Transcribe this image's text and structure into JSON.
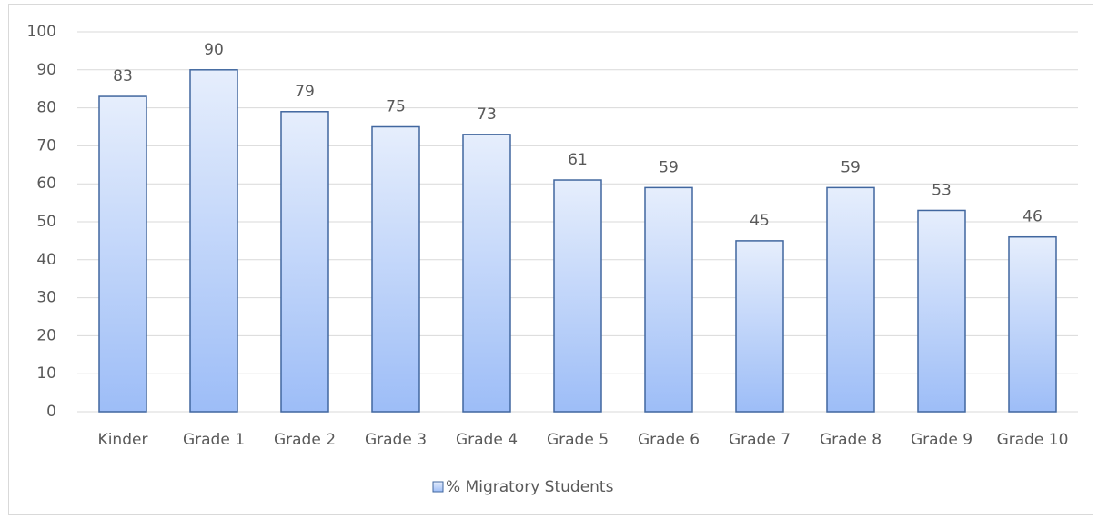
{
  "chart_data": {
    "type": "bar",
    "categories": [
      "Kinder",
      "Grade 1",
      "Grade 2",
      "Grade 3",
      "Grade 4",
      "Grade 5",
      "Grade 6",
      "Grade 7",
      "Grade 8",
      "Grade 9",
      "Grade 10"
    ],
    "series": [
      {
        "name": "% Migratory Students",
        "color": "#9dbdf7",
        "edgecolor": "#41679f",
        "values": [
          83,
          90,
          79,
          75,
          73,
          61,
          59,
          45,
          59,
          53,
          46
        ]
      }
    ],
    "ylim": [
      0,
      100
    ],
    "yticks": [
      0,
      10,
      20,
      30,
      40,
      50,
      60,
      70,
      80,
      90,
      100
    ],
    "grid": true,
    "legend": "bottom"
  }
}
